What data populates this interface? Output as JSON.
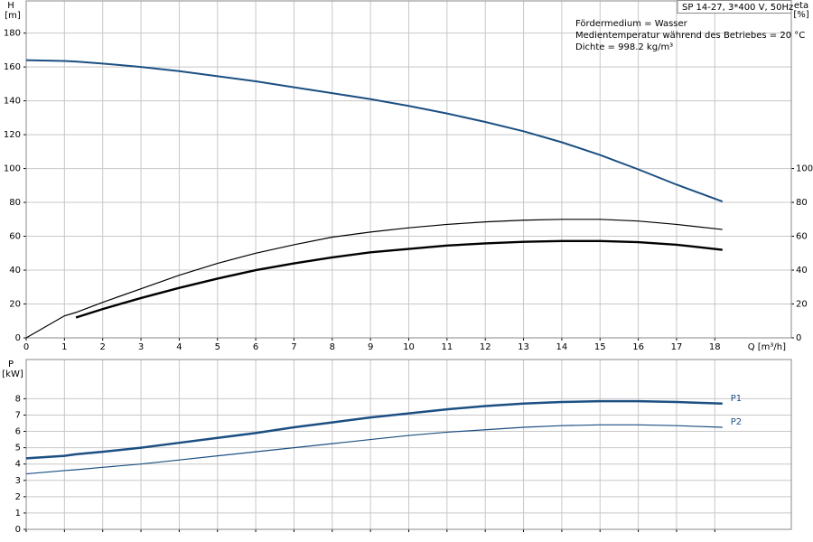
{
  "chart_data": [
    {
      "type": "line",
      "y_label": "H",
      "y_unit": "[m]",
      "y2_label": "eta",
      "y2_unit": "[%]",
      "x_label": "Q [m³/h]",
      "header_box": "SP 14-27, 3*400 V, 50Hz",
      "annotations": [
        "Fördermedium = Wasser",
        "Medientemperatur während des Betriebes = 20 °C",
        "Dichte = 998.2 kg/m³"
      ],
      "x": [
        0,
        1,
        1.3,
        2,
        3,
        4,
        5,
        6,
        7,
        8,
        9,
        10,
        11,
        12,
        13,
        14,
        15,
        16,
        17,
        18.2
      ],
      "xlim": [
        0,
        20
      ],
      "xticks": [
        0,
        1,
        2,
        3,
        4,
        5,
        6,
        7,
        8,
        9,
        10,
        11,
        12,
        13,
        14,
        15,
        16,
        17,
        18
      ],
      "ylim": [
        0,
        199
      ],
      "yticks": [
        0,
        20,
        40,
        60,
        80,
        100,
        120,
        140,
        160,
        180
      ],
      "y2lim": [
        0,
        199
      ],
      "y2ticks": [
        0,
        20,
        40,
        60,
        80,
        100
      ],
      "grid": true,
      "series": [
        {
          "color": "#1c4f82",
          "width": 2,
          "axis": "y",
          "values": [
            164,
            163.5,
            163.2,
            162,
            160,
            157.5,
            154.5,
            151.5,
            148,
            144.5,
            141,
            137,
            132.5,
            127.5,
            122,
            115.5,
            108,
            99.5,
            90.5,
            80.5
          ]
        },
        {
          "color": "#000000",
          "width": 1.2,
          "axis": "y2",
          "values": [
            0,
            13,
            15,
            21,
            29,
            37,
            44,
            50,
            55,
            59.5,
            62.5,
            65,
            67,
            68.5,
            69.5,
            70,
            70,
            69,
            67,
            64
          ]
        },
        {
          "color": "#000000",
          "width": 2.4,
          "axis": "y2",
          "values": [
            null,
            null,
            12,
            17,
            23.5,
            29.5,
            35,
            40,
            44,
            47.5,
            50.5,
            52.5,
            54.5,
            55.8,
            56.7,
            57.2,
            57.2,
            56.5,
            55,
            52
          ]
        }
      ]
    },
    {
      "type": "line",
      "y_label": "P",
      "y_unit": "[kW]",
      "x": [
        0,
        1,
        1.3,
        2,
        3,
        4,
        5,
        6,
        7,
        8,
        9,
        10,
        11,
        12,
        13,
        14,
        15,
        16,
        17,
        18.2
      ],
      "xlim": [
        0,
        20
      ],
      "xticks": [
        0,
        1,
        2,
        3,
        4,
        5,
        6,
        7,
        8,
        9,
        10,
        11,
        12,
        13,
        14,
        15,
        16,
        17,
        18
      ],
      "show_x_tick_labels": false,
      "ylim": [
        0,
        10.4
      ],
      "yticks": [
        0,
        1,
        2,
        3,
        4,
        5,
        6,
        7,
        8
      ],
      "grid": true,
      "series": [
        {
          "name": "P1",
          "color": "#1c4f82",
          "width": 2.5,
          "values": [
            4.35,
            4.5,
            4.6,
            4.75,
            5.0,
            5.3,
            5.6,
            5.9,
            6.25,
            6.55,
            6.85,
            7.1,
            7.35,
            7.55,
            7.7,
            7.8,
            7.85,
            7.85,
            7.8,
            7.7
          ]
        },
        {
          "name": "P2",
          "color": "#1c4f82",
          "width": 1.2,
          "values": [
            3.4,
            3.6,
            3.65,
            3.8,
            4.0,
            4.25,
            4.5,
            4.75,
            5.0,
            5.25,
            5.5,
            5.75,
            5.95,
            6.1,
            6.25,
            6.35,
            6.4,
            6.4,
            6.35,
            6.25
          ]
        }
      ]
    }
  ]
}
